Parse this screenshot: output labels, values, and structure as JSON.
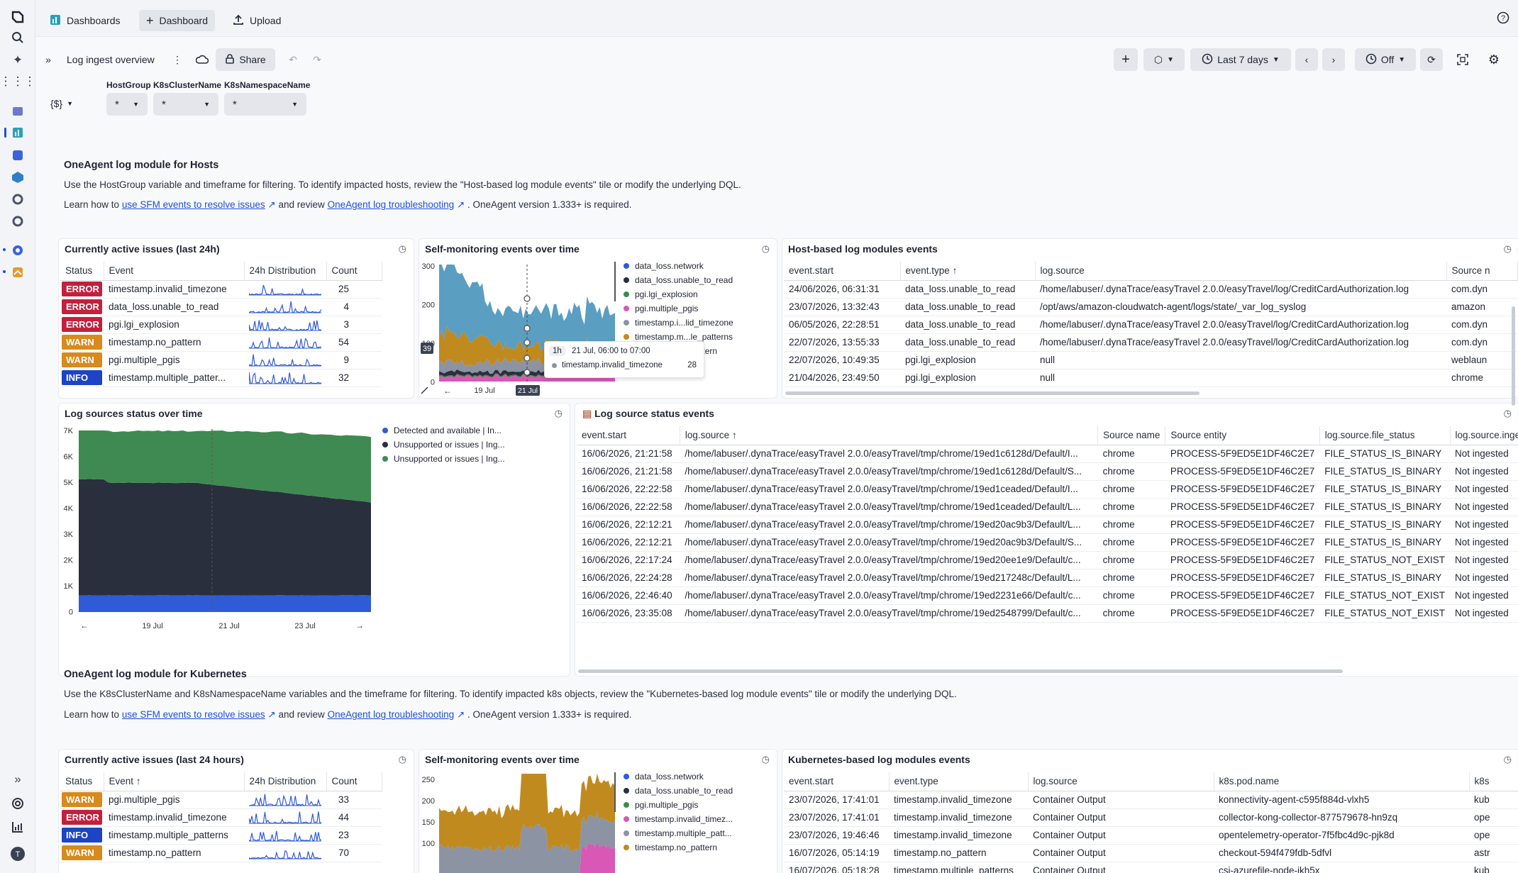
{
  "topbar": {
    "tabs": [
      "Dashboards",
      "Dashboard",
      "Upload"
    ]
  },
  "toolbar": {
    "title": "Log ingest overview",
    "share": "Share",
    "timeframe": "Last 7 days",
    "refresh": "Off"
  },
  "variables": {
    "dollar": "{$}",
    "items": [
      {
        "label": "HostGroup",
        "value": "*"
      },
      {
        "label": "K8sClusterName",
        "value": "*"
      },
      {
        "label": "K8sNamespaceName",
        "value": "*"
      }
    ]
  },
  "hosts_section": {
    "heading": "OneAgent log module for Hosts",
    "desc": "Use the HostGroup variable and timeframe for filtering. To identify impacted hosts, review the \"Host-based log module events\" tile or modify the underlying DQL.",
    "learn_pre": "Learn how to",
    "link1": "use SFM events to resolve issues",
    "learn_mid": "and review",
    "link2": "OneAgent log troubleshooting",
    "learn_post": ". OneAgent version 1.333+ is required."
  },
  "k8s_section": {
    "heading": "OneAgent log module for Kubernetes",
    "desc": "Use the K8sClusterName and K8sNamespaceName variables and the timeframe for filtering. To identify impacted k8s objects, review the \"Kubernetes-based log module events\" tile or modify the underlying DQL.",
    "learn_pre": "Learn how to",
    "link1": "use SFM events to resolve issues",
    "learn_mid": "and review",
    "link2": "OneAgent log troubleshooting",
    "learn_post": ". OneAgent version 1.333+ is required."
  },
  "issues_host": {
    "title": "Currently active issues (last 24h)",
    "columns": [
      "Status",
      "Event",
      "24h Distribution",
      "Count"
    ],
    "rows": [
      {
        "status": "ERROR",
        "event": "timestamp.invalid_timezone",
        "count": "25"
      },
      {
        "status": "ERROR",
        "event": "data_loss.unable_to_read",
        "count": "4"
      },
      {
        "status": "ERROR",
        "event": "pgi.lgi_explosion",
        "count": "3"
      },
      {
        "status": "WARN",
        "event": "timestamp.no_pattern",
        "count": "54"
      },
      {
        "status": "WARN",
        "event": "pgi.multiple_pgis",
        "count": "9"
      },
      {
        "status": "INFO",
        "event": "timestamp.multiple_patter...",
        "count": "32"
      }
    ]
  },
  "sfm_host": {
    "title": "Self-monitoring events over time",
    "yticks": [
      "300",
      "200",
      "100",
      "0"
    ],
    "xticks": [
      "19 Jul",
      "21 Jul"
    ],
    "legend": [
      "data_loss.network",
      "data_loss.unable_to_read",
      "pgi.lgi_explosion",
      "pgi.multiple_pgis",
      "timestamp.i...lid_timezone",
      "timestamp.m...le_patterns",
      "timestamp.no_pattern"
    ],
    "legend_colors": [
      "#2f5bd6",
      "#2a2f3d",
      "#3f8a52",
      "#d957b5",
      "#8c93a3",
      "#c08a1e",
      "#5a9ec2"
    ],
    "tooltip": {
      "badge": "1h",
      "range": "21 Jul, 06:00 to 07:00",
      "series": "timestamp.invalid_timezone",
      "value": "28",
      "cursor_value": "39",
      "cursor_date": "21 Jul"
    }
  },
  "host_events": {
    "title": "Host-based log modules events",
    "columns": [
      "event.start",
      "event.type",
      "log.source",
      "Source n"
    ],
    "rows": [
      [
        "24/06/2026, 06:31:31",
        "data_loss.unable_to_read",
        "/home/labuser/.dynaTrace/easyTravel 2.0.0/easyTravel/log/CreditCardAuthorization.log",
        "com.dyn"
      ],
      [
        "23/07/2026, 13:32:43",
        "data_loss.unable_to_read",
        "/opt/aws/amazon-cloudwatch-agent/logs/state/_var_log_syslog",
        "amazon"
      ],
      [
        "06/05/2026, 22:28:51",
        "data_loss.unable_to_read",
        "/home/labuser/.dynaTrace/easyTravel 2.0.0/easyTravel/log/CreditCardAuthorization.log",
        "com.dyn"
      ],
      [
        "22/07/2026, 13:55:33",
        "data_loss.unable_to_read",
        "/home/labuser/.dynaTrace/easyTravel 2.0.0/easyTravel/log/CreditCardAuthorization.log",
        "com.dyn"
      ],
      [
        "22/07/2026, 10:49:35",
        "pgi.lgi_explosion",
        "null",
        "weblaun"
      ],
      [
        "21/04/2026, 23:49:50",
        "pgi.lgi_explosion",
        "null",
        "chrome"
      ]
    ]
  },
  "log_status": {
    "title": "Log sources status over time",
    "yticks": [
      "7K",
      "6K",
      "5K",
      "4K",
      "3K",
      "2K",
      "1K",
      "0"
    ],
    "xticks": [
      "19 Jul",
      "21 Jul",
      "23 Jul"
    ],
    "legend": [
      "Detected and available | In...",
      "Unsupported or issues | Ing...",
      "Unsupported or issues | Ing..."
    ],
    "legend_colors": [
      "#2f5bd6",
      "#2a2f3d",
      "#3f8a52"
    ]
  },
  "source_events": {
    "title": "Log source status events",
    "columns": [
      "event.start",
      "log.source",
      "Source name",
      "Source entity",
      "log.source.file_status",
      "log.source.inge"
    ],
    "rows": [
      [
        "16/06/2026, 21:21:58",
        "/home/labuser/.dynaTrace/easyTravel 2.0.0/easyTravel/tmp/chrome/19ed1c6128d/Default/I...",
        "chrome",
        "PROCESS-5F9ED5E1DF46C2E7",
        "FILE_STATUS_IS_BINARY",
        "Not ingested"
      ],
      [
        "16/06/2026, 21:21:58",
        "/home/labuser/.dynaTrace/easyTravel 2.0.0/easyTravel/tmp/chrome/19ed1c6128d/Default/S...",
        "chrome",
        "PROCESS-5F9ED5E1DF46C2E7",
        "FILE_STATUS_IS_BINARY",
        "Not ingested"
      ],
      [
        "16/06/2026, 22:22:58",
        "/home/labuser/.dynaTrace/easyTravel 2.0.0/easyTravel/tmp/chrome/19ed1ceaded/Default/I...",
        "chrome",
        "PROCESS-5F9ED5E1DF46C2E7",
        "FILE_STATUS_IS_BINARY",
        "Not ingested"
      ],
      [
        "16/06/2026, 22:22:58",
        "/home/labuser/.dynaTrace/easyTravel 2.0.0/easyTravel/tmp/chrome/19ed1ceaded/Default/L...",
        "chrome",
        "PROCESS-5F9ED5E1DF46C2E7",
        "FILE_STATUS_IS_BINARY",
        "Not ingested"
      ],
      [
        "16/06/2026, 22:12:21",
        "/home/labuser/.dynaTrace/easyTravel 2.0.0/easyTravel/tmp/chrome/19ed20ac9b3/Default/L...",
        "chrome",
        "PROCESS-5F9ED5E1DF46C2E7",
        "FILE_STATUS_IS_BINARY",
        "Not ingested"
      ],
      [
        "16/06/2026, 22:12:21",
        "/home/labuser/.dynaTrace/easyTravel 2.0.0/easyTravel/tmp/chrome/19ed20ac9b3/Default/S...",
        "chrome",
        "PROCESS-5F9ED5E1DF46C2E7",
        "FILE_STATUS_IS_BINARY",
        "Not ingested"
      ],
      [
        "16/06/2026, 22:17:24",
        "/home/labuser/.dynaTrace/easyTravel 2.0.0/easyTravel/tmp/chrome/19ed20ee1e9/Default/c...",
        "chrome",
        "PROCESS-5F9ED5E1DF46C2E7",
        "FILE_STATUS_NOT_EXIST",
        "Not ingested"
      ],
      [
        "16/06/2026, 22:24:28",
        "/home/labuser/.dynaTrace/easyTravel 2.0.0/easyTravel/tmp/chrome/19ed217248c/Default/L...",
        "chrome",
        "PROCESS-5F9ED5E1DF46C2E7",
        "FILE_STATUS_IS_BINARY",
        "Not ingested"
      ],
      [
        "16/06/2026, 22:46:40",
        "/home/labuser/.dynaTrace/easyTravel 2.0.0/easyTravel/tmp/chrome/19ed2231e66/Default/c...",
        "chrome",
        "PROCESS-5F9ED5E1DF46C2E7",
        "FILE_STATUS_NOT_EXIST",
        "Not ingested"
      ],
      [
        "16/06/2026, 23:35:08",
        "/home/labuser/.dynaTrace/easyTravel 2.0.0/easyTravel/tmp/chrome/19ed2548799/Default/c...",
        "chrome",
        "PROCESS-5F9ED5E1DF46C2E7",
        "FILE_STATUS_NOT_EXIST",
        "Not ingested"
      ]
    ]
  },
  "issues_k8s": {
    "title": "Currently active issues (last 24 hours)",
    "columns": [
      "Status",
      "Event",
      "24h Distribution",
      "Count"
    ],
    "rows": [
      {
        "status": "WARN",
        "event": "pgi.multiple_pgis",
        "count": "33"
      },
      {
        "status": "ERROR",
        "event": "timestamp.invalid_timezone",
        "count": "44"
      },
      {
        "status": "INFO",
        "event": "timestamp.multiple_patterns",
        "count": "23"
      },
      {
        "status": "WARN",
        "event": "timestamp.no_pattern",
        "count": "70"
      }
    ]
  },
  "sfm_k8s": {
    "title": "Self-monitoring events over time",
    "yticks": [
      "250",
      "200",
      "150",
      "100"
    ],
    "legend": [
      "data_loss.network",
      "data_loss.unable_to_read",
      "pgi.multiple_pgis",
      "timestamp.invalid_timez...",
      "timestamp.multiple_patt...",
      "timestamp.no_pattern"
    ],
    "legend_colors": [
      "#2f5bd6",
      "#2a2f3d",
      "#3f8a52",
      "#d957b5",
      "#8c93a3",
      "#c08a1e"
    ]
  },
  "k8s_events": {
    "title": "Kubernetes-based log modules events",
    "columns": [
      "event.start",
      "event.type",
      "log.source",
      "k8s.pod.name",
      "k8s"
    ],
    "rows": [
      [
        "23/07/2026, 17:41:01",
        "timestamp.invalid_timezone",
        "Container Output",
        "konnectivity-agent-c595f884d-vlxh5",
        "kub"
      ],
      [
        "23/07/2026, 17:41:01",
        "timestamp.invalid_timezone",
        "Container Output",
        "collector-kong-collector-877579678-hn9zq",
        "ope"
      ],
      [
        "23/07/2026, 19:46:46",
        "timestamp.invalid_timezone",
        "Container Output",
        "opentelemetry-operator-7f5fbc4d9c-pjk8d",
        "ope"
      ],
      [
        "16/07/2026, 05:14:19",
        "timestamp.no_pattern",
        "Container Output",
        "checkout-594f479fdb-5dfvl",
        "astr"
      ],
      [
        "16/07/2026, 05:18:28",
        "timestamp.multiple_patterns",
        "Container Output",
        "csi-azurefile-node-jkh5x",
        "kub"
      ]
    ]
  }
}
